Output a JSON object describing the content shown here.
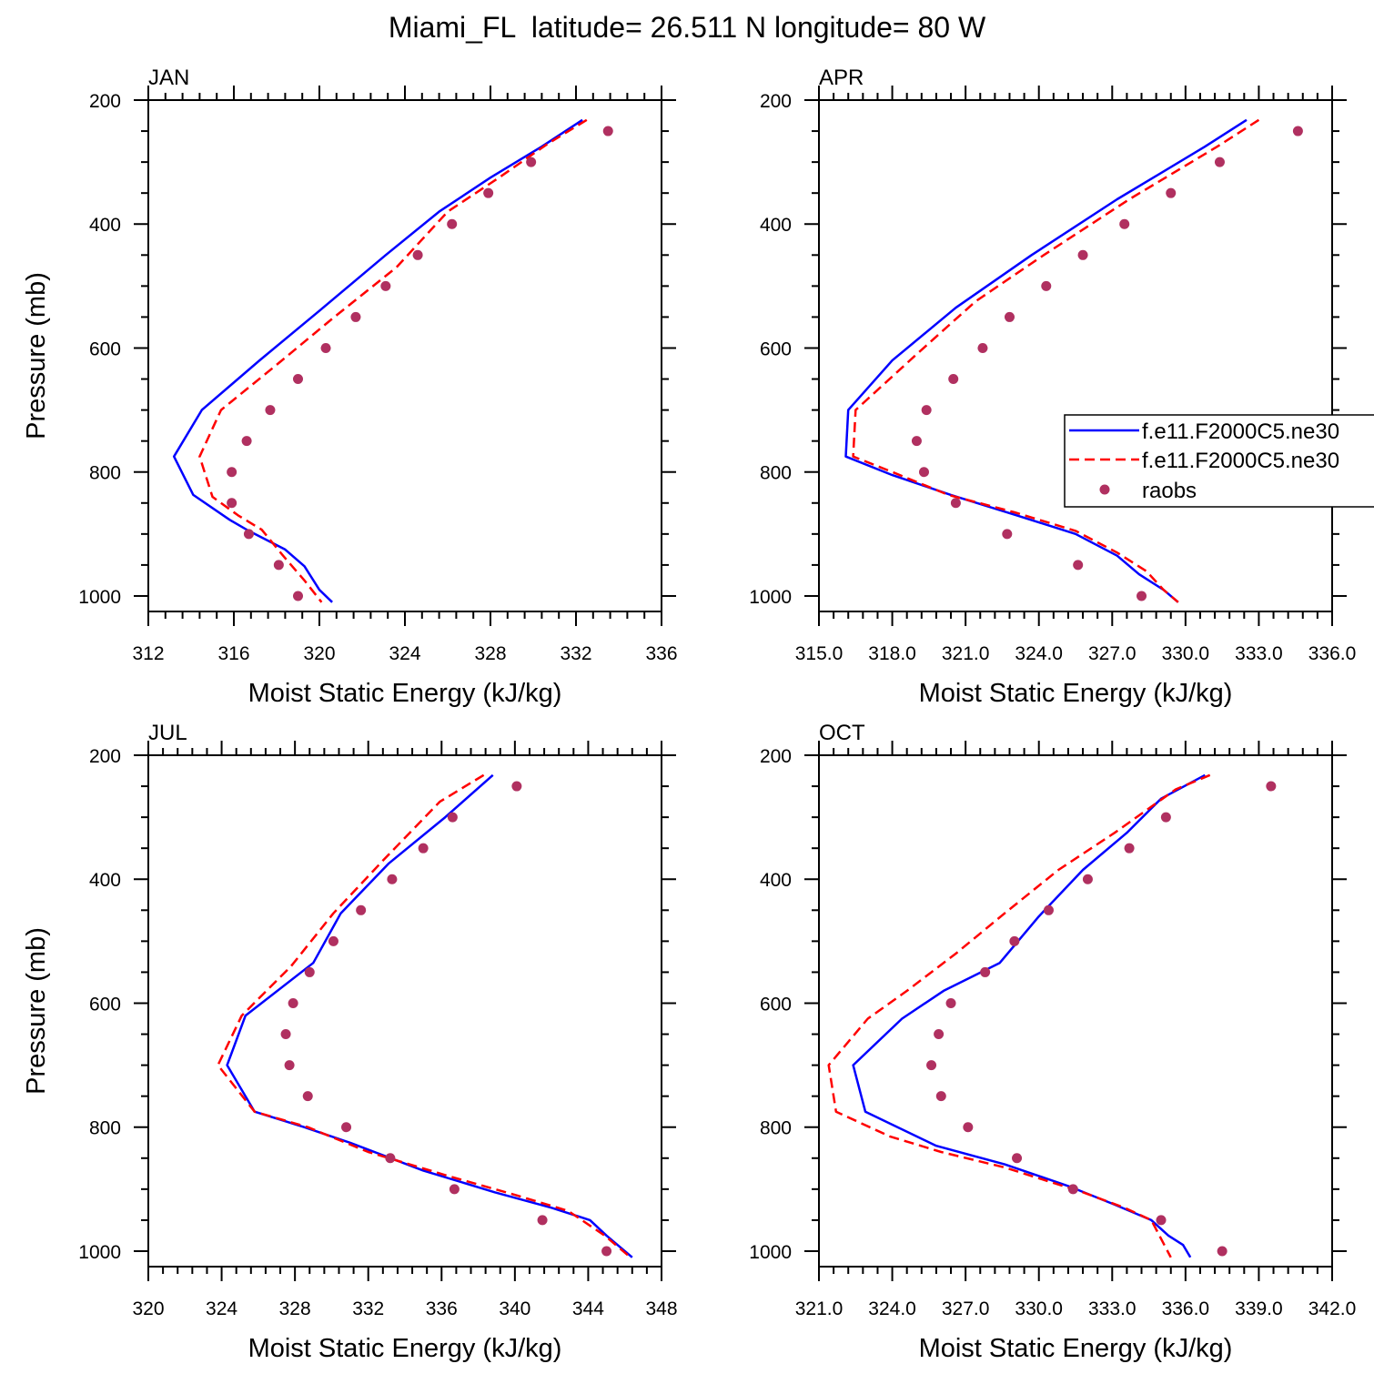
{
  "title": "Miami_FL  latitude= 26.511 N longitude= 80 W",
  "legend": {
    "entries": [
      {
        "label": "f.e11.F2000C5.ne30",
        "color": "#0000ff",
        "style": "solid"
      },
      {
        "label": "f.e11.F2000C5.ne30",
        "color": "#ff0000",
        "style": "dashed"
      },
      {
        "label": "raobs",
        "color": "#b03060",
        "style": "marker"
      }
    ],
    "placement": "right of APR panel"
  },
  "chart_data": [
    {
      "type": "line",
      "title": "JAN",
      "xlabel": "Moist Static Energy (kJ/kg)",
      "ylabel": "Pressure (mb)",
      "xlim": [
        312,
        336
      ],
      "ylim": [
        200,
        1025
      ],
      "x_ticks": [
        "312",
        "316",
        "320",
        "324",
        "328",
        "332",
        "336"
      ],
      "y_ticks": [
        "200",
        "400",
        "600",
        "800",
        "1000"
      ],
      "series": [
        {
          "name": "f.e11.F2000C5.ne30",
          "color": "#0000ff",
          "style": "solid",
          "points": [
            [
              332.3,
              232
            ],
            [
              330.4,
              275
            ],
            [
              328.0,
              325
            ],
            [
              325.6,
              380
            ],
            [
              323.1,
              450
            ],
            [
              320.0,
              540
            ],
            [
              317.2,
              620
            ],
            [
              314.5,
              700
            ],
            [
              313.2,
              775
            ],
            [
              314.1,
              837
            ],
            [
              315.8,
              877
            ],
            [
              316.7,
              895
            ],
            [
              318.4,
              925
            ],
            [
              319.3,
              952
            ],
            [
              320.0,
              990
            ],
            [
              320.6,
              1010
            ]
          ]
        },
        {
          "name": "f.e11.F2000C5.ne30",
          "color": "#ff0000",
          "style": "dashed",
          "points": [
            [
              332.5,
              232
            ],
            [
              330.7,
              270
            ],
            [
              328.4,
              325
            ],
            [
              326.0,
              380
            ],
            [
              323.6,
              470
            ],
            [
              320.7,
              550
            ],
            [
              317.9,
              630
            ],
            [
              315.4,
              700
            ],
            [
              314.4,
              775
            ],
            [
              315.0,
              840
            ],
            [
              316.2,
              870
            ],
            [
              317.3,
              893
            ],
            [
              318.3,
              935
            ],
            [
              319.3,
              975
            ],
            [
              320.1,
              1010
            ]
          ]
        },
        {
          "name": "raobs",
          "color": "#b03060",
          "style": "marker",
          "points": [
            [
              333.5,
              250
            ],
            [
              329.9,
              300
            ],
            [
              327.9,
              350
            ],
            [
              326.2,
              400
            ],
            [
              324.6,
              450
            ],
            [
              323.1,
              500
            ],
            [
              321.7,
              550
            ],
            [
              320.3,
              600
            ],
            [
              319.0,
              650
            ],
            [
              317.7,
              700
            ],
            [
              316.6,
              750
            ],
            [
              315.9,
              800
            ],
            [
              315.9,
              850
            ],
            [
              316.7,
              900
            ],
            [
              318.1,
              950
            ],
            [
              319.0,
              1000
            ]
          ]
        }
      ]
    },
    {
      "type": "line",
      "title": "APR",
      "xlabel": "Moist Static Energy (kJ/kg)",
      "ylabel": "Pressure (mb)",
      "xlim": [
        315,
        336
      ],
      "ylim": [
        200,
        1025
      ],
      "x_ticks": [
        "315.0",
        "318.0",
        "321.0",
        "324.0",
        "327.0",
        "330.0",
        "333.0",
        "336.0"
      ],
      "y_ticks": [
        "200",
        "400",
        "600",
        "800",
        "1000"
      ],
      "series": [
        {
          "name": "f.e11.F2000C5.ne30",
          "color": "#0000ff",
          "style": "solid",
          "points": [
            [
              332.5,
              232
            ],
            [
              330.8,
              275
            ],
            [
              327.2,
              360
            ],
            [
              323.7,
              450
            ],
            [
              320.6,
              535
            ],
            [
              318.0,
              620
            ],
            [
              316.2,
              700
            ],
            [
              316.1,
              775
            ],
            [
              318.0,
              805
            ],
            [
              320.4,
              837
            ],
            [
              323.1,
              870
            ],
            [
              325.5,
              900
            ],
            [
              327.2,
              935
            ],
            [
              328.1,
              965
            ],
            [
              329.1,
              990
            ],
            [
              329.7,
              1010
            ]
          ]
        },
        {
          "name": "f.e11.F2000C5.ne30",
          "color": "#ff0000",
          "style": "dashed",
          "points": [
            [
              333.0,
              232
            ],
            [
              331.3,
              275
            ],
            [
              327.7,
              360
            ],
            [
              324.2,
              450
            ],
            [
              321.4,
              525
            ],
            [
              319.0,
              610
            ],
            [
              316.5,
              700
            ],
            [
              316.4,
              775
            ],
            [
              318.0,
              800
            ],
            [
              320.3,
              837
            ],
            [
              323.0,
              865
            ],
            [
              325.5,
              895
            ],
            [
              327.2,
              930
            ],
            [
              328.4,
              960
            ],
            [
              329.1,
              990
            ],
            [
              329.7,
              1010
            ]
          ]
        },
        {
          "name": "raobs",
          "color": "#b03060",
          "style": "marker",
          "points": [
            [
              334.6,
              250
            ],
            [
              331.4,
              300
            ],
            [
              329.4,
              350
            ],
            [
              327.5,
              400
            ],
            [
              325.8,
              450
            ],
            [
              324.3,
              500
            ],
            [
              322.8,
              550
            ],
            [
              321.7,
              600
            ],
            [
              320.5,
              650
            ],
            [
              319.4,
              700
            ],
            [
              319.0,
              750
            ],
            [
              319.3,
              800
            ],
            [
              320.6,
              850
            ],
            [
              322.7,
              900
            ],
            [
              325.6,
              950
            ],
            [
              328.2,
              1000
            ]
          ]
        }
      ]
    },
    {
      "type": "line",
      "title": "JUL",
      "xlabel": "Moist Static Energy (kJ/kg)",
      "ylabel": "Pressure (mb)",
      "xlim": [
        320,
        348
      ],
      "ylim": [
        200,
        1025
      ],
      "x_ticks": [
        "320",
        "324",
        "328",
        "332",
        "336",
        "340",
        "344",
        "348"
      ],
      "y_ticks": [
        "200",
        "400",
        "600",
        "800",
        "1000"
      ],
      "series": [
        {
          "name": "f.e11.F2000C5.ne30",
          "color": "#0000ff",
          "style": "solid",
          "points": [
            [
              338.8,
              232
            ],
            [
              336.2,
              300
            ],
            [
              333.1,
              375
            ],
            [
              330.5,
              455
            ],
            [
              329.0,
              535
            ],
            [
              325.3,
              620
            ],
            [
              324.3,
              700
            ],
            [
              325.8,
              775
            ],
            [
              328.5,
              800
            ],
            [
              331.0,
              825
            ],
            [
              335.0,
              870
            ],
            [
              338.9,
              905
            ],
            [
              342.0,
              930
            ],
            [
              344.1,
              950
            ],
            [
              345.0,
              975
            ],
            [
              346.4,
              1010
            ]
          ]
        },
        {
          "name": "f.e11.F2000C5.ne30",
          "color": "#ff0000",
          "style": "dashed",
          "points": [
            [
              338.3,
              232
            ],
            [
              335.9,
              275
            ],
            [
              332.8,
              370
            ],
            [
              330.1,
              455
            ],
            [
              327.8,
              540
            ],
            [
              325.1,
              620
            ],
            [
              323.8,
              700
            ],
            [
              325.8,
              775
            ],
            [
              328.7,
              800
            ],
            [
              332.0,
              840
            ],
            [
              336.5,
              880
            ],
            [
              340.1,
              910
            ],
            [
              342.9,
              935
            ],
            [
              344.9,
              975
            ],
            [
              346.3,
              1010
            ]
          ]
        },
        {
          "name": "raobs",
          "color": "#b03060",
          "style": "marker",
          "points": [
            [
              340.1,
              250
            ],
            [
              336.6,
              300
            ],
            [
              335.0,
              350
            ],
            [
              333.3,
              400
            ],
            [
              331.6,
              450
            ],
            [
              330.1,
              500
            ],
            [
              328.8,
              550
            ],
            [
              327.9,
              600
            ],
            [
              327.5,
              650
            ],
            [
              327.7,
              700
            ],
            [
              328.7,
              750
            ],
            [
              330.8,
              800
            ],
            [
              333.2,
              850
            ],
            [
              336.7,
              900
            ],
            [
              341.5,
              950
            ],
            [
              345.0,
              1000
            ]
          ]
        }
      ]
    },
    {
      "type": "line",
      "title": "OCT",
      "xlabel": "Moist Static Energy (kJ/kg)",
      "ylabel": "Pressure (mb)",
      "xlim": [
        321,
        342
      ],
      "ylim": [
        200,
        1025
      ],
      "x_ticks": [
        "321.0",
        "324.0",
        "327.0",
        "330.0",
        "333.0",
        "336.0",
        "339.0",
        "342.0"
      ],
      "y_ticks": [
        "200",
        "400",
        "600",
        "800",
        "1000"
      ],
      "series": [
        {
          "name": "f.e11.F2000C5.ne30",
          "color": "#0000ff",
          "style": "solid",
          "points": [
            [
              336.8,
              232
            ],
            [
              335.0,
              270
            ],
            [
              333.6,
              325
            ],
            [
              331.8,
              385
            ],
            [
              330.0,
              460
            ],
            [
              328.4,
              535
            ],
            [
              326.1,
              580
            ],
            [
              324.4,
              625
            ],
            [
              322.4,
              700
            ],
            [
              322.9,
              775
            ],
            [
              325.8,
              830
            ],
            [
              328.6,
              860
            ],
            [
              331.2,
              895
            ],
            [
              333.1,
              925
            ],
            [
              334.6,
              950
            ],
            [
              335.3,
              975
            ],
            [
              335.9,
              990
            ],
            [
              336.2,
              1010
            ]
          ]
        },
        {
          "name": "f.e11.F2000C5.ne30",
          "color": "#ff0000",
          "style": "dashed",
          "points": [
            [
              337.0,
              232
            ],
            [
              335.6,
              255
            ],
            [
              333.1,
              325
            ],
            [
              330.8,
              385
            ],
            [
              328.6,
              455
            ],
            [
              326.6,
              520
            ],
            [
              324.6,
              580
            ],
            [
              323.0,
              625
            ],
            [
              321.4,
              700
            ],
            [
              321.7,
              775
            ],
            [
              323.9,
              815
            ],
            [
              326.0,
              840
            ],
            [
              328.6,
              865
            ],
            [
              331.8,
              905
            ],
            [
              333.5,
              930
            ],
            [
              334.6,
              950
            ],
            [
              335.4,
              1010
            ]
          ]
        },
        {
          "name": "raobs",
          "color": "#b03060",
          "style": "marker",
          "points": [
            [
              339.5,
              250
            ],
            [
              335.2,
              300
            ],
            [
              333.7,
              350
            ],
            [
              332.0,
              400
            ],
            [
              330.4,
              450
            ],
            [
              329.0,
              500
            ],
            [
              327.8,
              550
            ],
            [
              326.4,
              600
            ],
            [
              325.9,
              650
            ],
            [
              325.6,
              700
            ],
            [
              326.0,
              750
            ],
            [
              327.1,
              800
            ],
            [
              329.1,
              850
            ],
            [
              331.4,
              900
            ],
            [
              335.0,
              950
            ],
            [
              337.5,
              1000
            ]
          ]
        }
      ]
    }
  ]
}
